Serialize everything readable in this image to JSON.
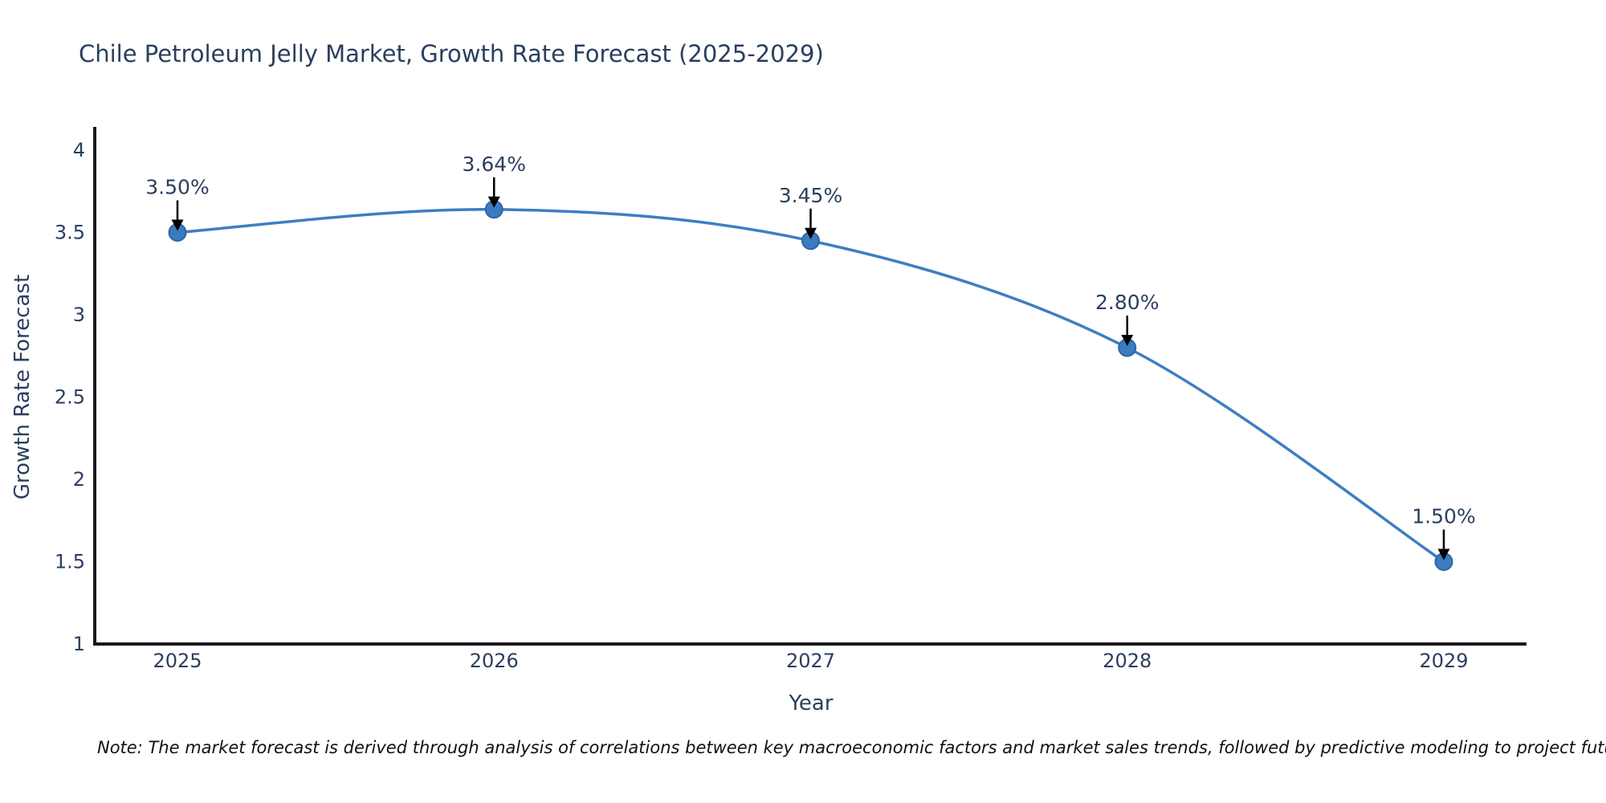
{
  "title": "Chile Petroleum Jelly Market, Growth Rate Forecast (2025-2029)",
  "note": "Note: The market forecast is derived through analysis of correlations between key macroeconomic factors and market sales trends, followed by predictive modeling to project future sales",
  "chart_data": {
    "type": "line",
    "line_shape": "spline",
    "title": "Chile Petroleum Jelly Market, Growth Rate Forecast (2025-2029)",
    "xlabel": "Year",
    "ylabel": "Growth Rate Forecast",
    "categories": [
      "2025",
      "2026",
      "2027",
      "2028",
      "2029"
    ],
    "values": [
      3.5,
      3.64,
      3.45,
      2.8,
      1.5
    ],
    "point_labels": [
      "3.50%",
      "3.64%",
      "3.45%",
      "2.80%",
      "1.50%"
    ],
    "annotation_style": "label above point with downward arrow",
    "ylim": [
      1,
      4
    ],
    "yticks": [
      1,
      1.5,
      2,
      2.5,
      3,
      3.5,
      4
    ],
    "ytick_labels": [
      "1",
      "1.5",
      "2",
      "2.5",
      "3",
      "3.5",
      "4"
    ],
    "grid": false,
    "legend": "none",
    "colors": {
      "line": "#3d7ec2",
      "marker_fill": "#3a7cbf",
      "marker_edge": "#2c67a5",
      "axis": "#19191d",
      "tick_text": "#2a3f5f",
      "annotation_text": "#2a3f5f",
      "arrow": "#000000",
      "background": "#ffffff"
    }
  }
}
